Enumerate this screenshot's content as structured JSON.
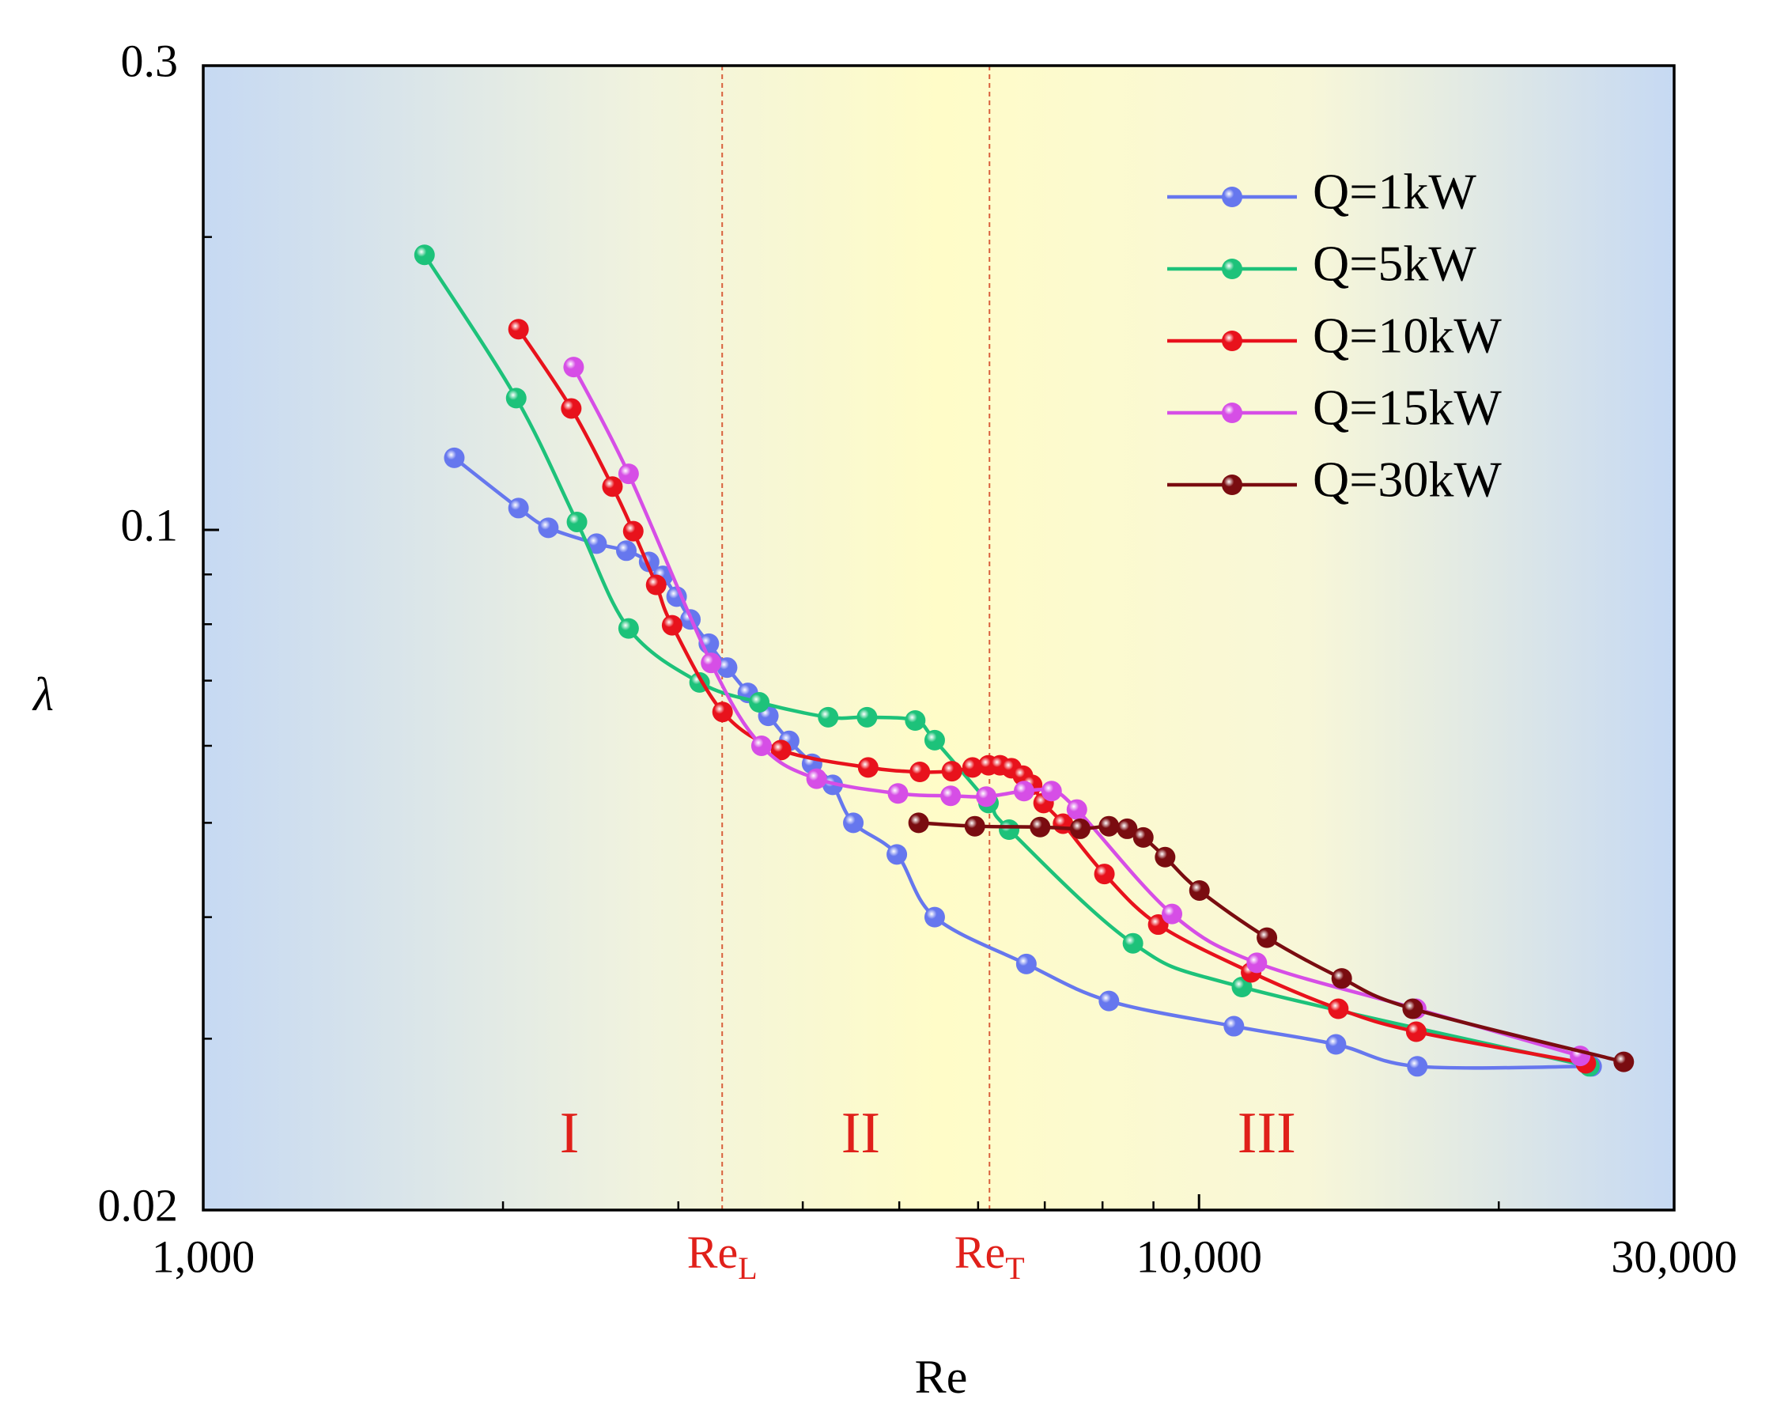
{
  "chart_data": {
    "type": "line",
    "x_label": "Re",
    "y_label": "λ",
    "xscale": "log",
    "yscale": "log",
    "xlim": [
      1000,
      30000
    ],
    "ylim": [
      0.02,
      0.3
    ],
    "xticks": [
      {
        "value": 1000,
        "label": "1,000"
      },
      {
        "value": 10000,
        "label": "10,000"
      },
      {
        "value": 30000,
        "label": "30,000"
      }
    ],
    "xminor_ticks": [
      2000,
      3000,
      4000,
      5000,
      6000,
      7000,
      8000,
      9000,
      20000
    ],
    "yticks": [
      0.02,
      0.1,
      0.3
    ],
    "yminor_ticks": [
      0.03,
      0.04,
      0.05,
      0.06,
      0.07,
      0.08,
      0.09,
      0.2
    ],
    "legend": "upper right",
    "annotations": [
      {
        "text": "Re",
        "subscript": "L",
        "x": 3320
      },
      {
        "text": "Re",
        "subscript": "T",
        "x": 6160
      }
    ],
    "regions": [
      "I",
      "II",
      "III"
    ],
    "series": [
      {
        "name": "Q=1kW",
        "color": "#6677ee",
        "x": [
          1787,
          2073,
          2221,
          2483,
          2660,
          2804,
          2895,
          2988,
          3085,
          3219,
          3358,
          3523,
          3694,
          3876,
          4087,
          4287,
          4496,
          4972,
          5427,
          6708,
          8120,
          10840,
          13725,
          16565,
          24790
        ],
        "values": [
          0.1186,
          0.1053,
          0.1005,
          0.0968,
          0.0952,
          0.0927,
          0.0897,
          0.0854,
          0.0809,
          0.0764,
          0.0722,
          0.068,
          0.0644,
          0.0607,
          0.0575,
          0.0547,
          0.05,
          0.0464,
          0.04,
          0.0358,
          0.0328,
          0.0309,
          0.0296,
          0.0281,
          0.0281
        ]
      },
      {
        "name": "Q=5kW",
        "color": "#1dc27a",
        "x": [
          1668,
          2062,
          2373,
          2674,
          3151,
          3617,
          4242,
          4641,
          5188,
          5427,
          6146,
          6446,
          8583,
          11043,
          24660
        ],
        "values": [
          0.1917,
          0.1366,
          0.1019,
          0.0792,
          0.0697,
          0.0665,
          0.0642,
          0.0642,
          0.0637,
          0.0608,
          0.0524,
          0.0492,
          0.0376,
          0.0339,
          0.0281
        ]
      },
      {
        "name": "Q=10kW",
        "color": "#e8121c",
        "x": [
          2073,
          2342,
          2576,
          2703,
          2850,
          2957,
          3323,
          3804,
          4653,
          5244,
          5647,
          5923,
          6146,
          6312,
          6481,
          6655,
          6798,
          6981,
          7302,
          8035,
          9100,
          11280,
          13800,
          16525,
          24460
        ],
        "values": [
          0.1608,
          0.1333,
          0.1108,
          0.0997,
          0.0878,
          0.0798,
          0.065,
          0.0594,
          0.057,
          0.0564,
          0.0565,
          0.057,
          0.0573,
          0.0573,
          0.0569,
          0.0559,
          0.0547,
          0.0524,
          0.0499,
          0.0443,
          0.0393,
          0.0351,
          0.0322,
          0.0305,
          0.0283
        ]
      },
      {
        "name": "Q=15kW",
        "color": "#d64ee6",
        "x": [
          2355,
          2674,
          3236,
          3636,
          4130,
          4985,
          5631,
          6114,
          6672,
          7111,
          7540,
          9394,
          11430,
          16525,
          24140
        ],
        "values": [
          0.147,
          0.1142,
          0.073,
          0.06,
          0.0555,
          0.0536,
          0.0533,
          0.0532,
          0.0539,
          0.0539,
          0.0516,
          0.0403,
          0.0359,
          0.0322,
          0.0288
        ]
      },
      {
        "name": "Q=30kW",
        "color": "#7a0c10",
        "x": [
          5229,
          5955,
          6925,
          7598,
          8120,
          8470,
          8791,
          9246,
          10010,
          11700,
          13910,
          16390,
          26700
        ],
        "values": [
          0.05,
          0.0496,
          0.0495,
          0.0493,
          0.0496,
          0.0493,
          0.0483,
          0.0461,
          0.0426,
          0.0381,
          0.0346,
          0.0322,
          0.0284
        ]
      }
    ]
  }
}
